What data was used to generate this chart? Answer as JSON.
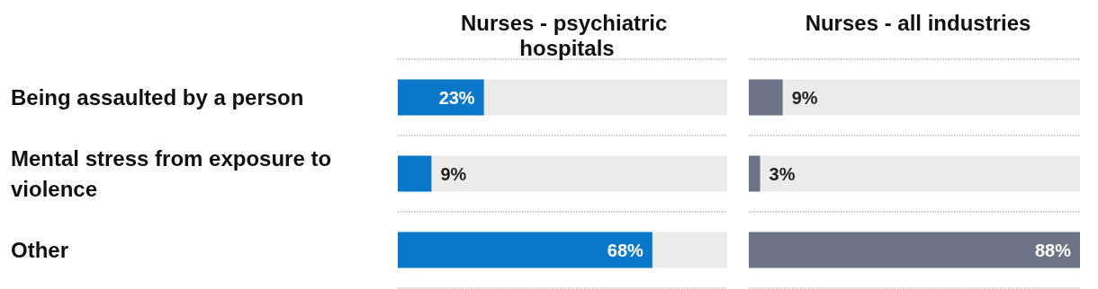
{
  "chart_data": [
    {
      "type": "bar",
      "orientation": "horizontal",
      "title": "Nurses - psychiatric hospitals",
      "categories": [
        "Being assaulted by a person",
        "Mental stress from exposure to violence",
        "Other"
      ],
      "values": [
        23,
        9,
        68
      ],
      "color": "#0a78c8",
      "data_labels": true,
      "value_labels": [
        "23%",
        "9%",
        "68%"
      ],
      "grid": "y"
    },
    {
      "type": "bar",
      "orientation": "horizontal",
      "title": "Nurses - all industries",
      "categories": [
        null,
        null,
        null
      ],
      "values": [
        9,
        3,
        88
      ],
      "color": "#6c7486",
      "data_labels": true,
      "value_labels": [
        "9%",
        "3%",
        "88%"
      ],
      "grid": "y",
      "tick_labels": false
    }
  ]
}
